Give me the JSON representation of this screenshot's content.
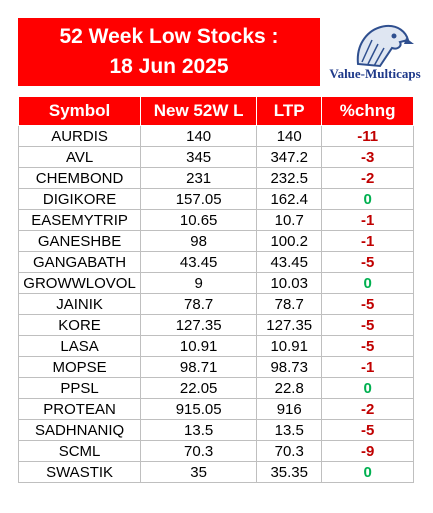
{
  "header": {
    "title": [
      "52 Week Low Stocks :",
      "18 Jun 2025"
    ],
    "brand": "Value-Multicaps"
  },
  "table": {
    "columns": [
      "Symbol",
      "New 52W L",
      "LTP",
      "%chng"
    ],
    "rows": [
      [
        "AURDIS",
        "140",
        "140",
        "-11"
      ],
      [
        "AVL",
        "345",
        "347.2",
        "-3"
      ],
      [
        "CHEMBOND",
        "231",
        "232.5",
        "-2"
      ],
      [
        "DIGIKORE",
        "157.05",
        "162.4",
        "0"
      ],
      [
        "EASEMYTRIP",
        "10.65",
        "10.7",
        "-1"
      ],
      [
        "GANESHBE",
        "98",
        "100.2",
        "-1"
      ],
      [
        "GANGABATH",
        "43.45",
        "43.45",
        "-5"
      ],
      [
        "GROWWLOVOL",
        "9",
        "10.03",
        "0"
      ],
      [
        "JAINIK",
        "78.7",
        "78.7",
        "-5"
      ],
      [
        "KORE",
        "127.35",
        "127.35",
        "-5"
      ],
      [
        "LASA",
        "10.91",
        "10.91",
        "-5"
      ],
      [
        "MOPSE",
        "98.71",
        "98.73",
        "-1"
      ],
      [
        "PPSL",
        "22.05",
        "22.8",
        "0"
      ],
      [
        "PROTEAN",
        "915.05",
        "916",
        "-2"
      ],
      [
        "SADHNANIQ",
        "13.5",
        "13.5",
        "-5"
      ],
      [
        "SCML",
        "70.3",
        "70.3",
        "-9"
      ],
      [
        "SWASTIK",
        "35",
        "35.35",
        "0"
      ]
    ]
  }
}
